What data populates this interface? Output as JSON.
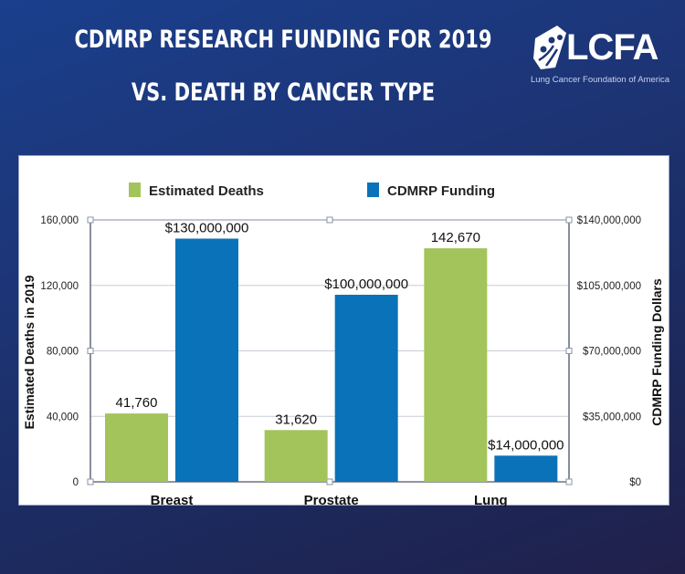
{
  "header": {
    "title_line1": "CDMRP RESEARCH FUNDING FOR 2019",
    "title_line2": "VS. DEATH BY CANCER TYPE"
  },
  "logo": {
    "name": "LCFA",
    "subtitle": "Lung Cancer Foundation of America",
    "icon": "lcfa-figures-logo-icon"
  },
  "colors": {
    "background": "#1d3577",
    "deaths": "#a3c45a",
    "funding": "#0a72b8",
    "gridline": "#c9cdd6",
    "frame": "#6b7280"
  },
  "chart_data": {
    "type": "bar",
    "title": "CDMRP Research Funding for 2019 vs. Death by Cancer Type",
    "categories": [
      "Breast",
      "Prostate",
      "Lung"
    ],
    "series": [
      {
        "name": "Estimated Deaths",
        "axis": "left",
        "values": [
          41760,
          31620,
          142670
        ],
        "labels": [
          "41,760",
          "31,620",
          "142,670"
        ]
      },
      {
        "name": "CDMRP Funding",
        "axis": "right",
        "values": [
          130000000,
          100000000,
          14000000
        ],
        "labels": [
          "$130,000,000",
          "$100,000,000",
          "$14,000,000"
        ]
      }
    ],
    "ylabel": "Estimated Deaths in 2019",
    "ylabel_right": "CDMRP Funding Dollars",
    "ylim": [
      0,
      160000
    ],
    "ylim_right": [
      0,
      140000000
    ],
    "yticks": [
      "0",
      "40,000",
      "80,000",
      "120,000",
      "160,000"
    ],
    "yticks_values": [
      0,
      40000,
      80000,
      120000,
      160000
    ],
    "yticks_right": [
      "$0",
      "$35,000,000",
      "$70,000,000",
      "$105,000,000",
      "$140,000,000"
    ],
    "grid": true,
    "legend": "top-center"
  }
}
